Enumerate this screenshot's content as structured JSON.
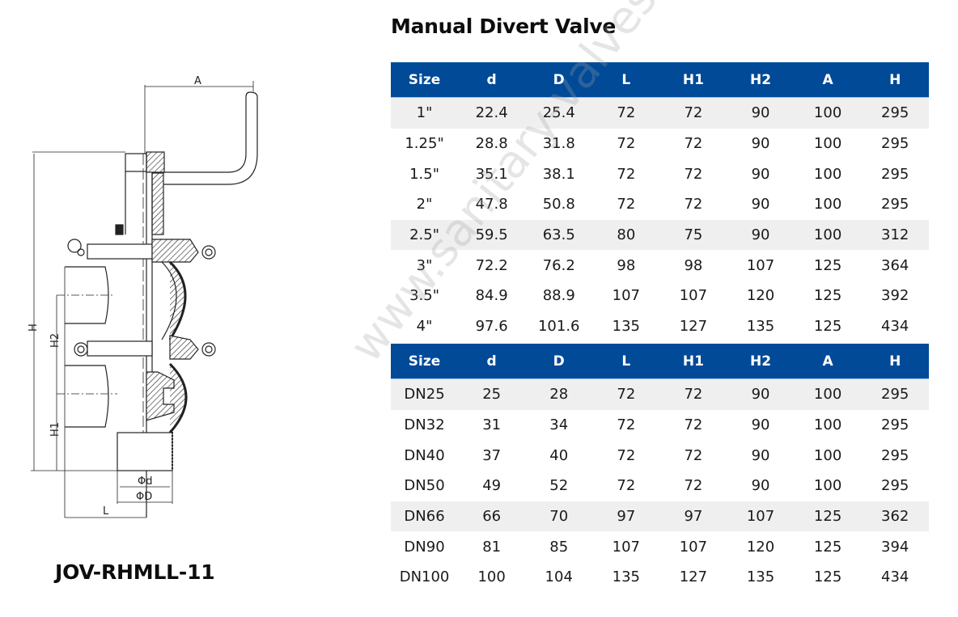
{
  "title": "Manual Divert Valve",
  "model": "JOV-RHMLL-11",
  "watermark": "www.sanitary-valves.com",
  "colors": {
    "header_bg": "#004a98",
    "row_shade": "#efefef",
    "header_text": "#ffffff"
  },
  "diagram": {
    "labels": {
      "A": "A",
      "H": "H",
      "H1": "H1",
      "H2": "H2",
      "d": "Φd",
      "D": "ΦD",
      "L": "L"
    }
  },
  "table_inch": {
    "headers": [
      "Size",
      "d",
      "D",
      "L",
      "H1",
      "H2",
      "A",
      "H"
    ],
    "rows": [
      {
        "shaded": true,
        "cells": [
          "1\"",
          "22.4",
          "25.4",
          "72",
          "72",
          "90",
          "100",
          "295"
        ]
      },
      {
        "shaded": false,
        "cells": [
          "1.25\"",
          "28.8",
          "31.8",
          "72",
          "72",
          "90",
          "100",
          "295"
        ]
      },
      {
        "shaded": false,
        "cells": [
          "1.5\"",
          "35.1",
          "38.1",
          "72",
          "72",
          "90",
          "100",
          "295"
        ]
      },
      {
        "shaded": false,
        "cells": [
          "2\"",
          "47.8",
          "50.8",
          "72",
          "72",
          "90",
          "100",
          "295"
        ]
      },
      {
        "shaded": true,
        "cells": [
          "2.5\"",
          "59.5",
          "63.5",
          "80",
          "75",
          "90",
          "100",
          "312"
        ]
      },
      {
        "shaded": false,
        "cells": [
          "3\"",
          "72.2",
          "76.2",
          "98",
          "98",
          "107",
          "125",
          "364"
        ]
      },
      {
        "shaded": false,
        "cells": [
          "3.5\"",
          "84.9",
          "88.9",
          "107",
          "107",
          "120",
          "125",
          "392"
        ]
      },
      {
        "shaded": false,
        "cells": [
          "4\"",
          "97.6",
          "101.6",
          "135",
          "127",
          "135",
          "125",
          "434"
        ]
      }
    ]
  },
  "table_dn": {
    "headers": [
      "Size",
      "d",
      "D",
      "L",
      "H1",
      "H2",
      "A",
      "H"
    ],
    "rows": [
      {
        "shaded": true,
        "cells": [
          "DN25",
          "25",
          "28",
          "72",
          "72",
          "90",
          "100",
          "295"
        ]
      },
      {
        "shaded": false,
        "cells": [
          "DN32",
          "31",
          "34",
          "72",
          "72",
          "90",
          "100",
          "295"
        ]
      },
      {
        "shaded": false,
        "cells": [
          "DN40",
          "37",
          "40",
          "72",
          "72",
          "90",
          "100",
          "295"
        ]
      },
      {
        "shaded": false,
        "cells": [
          "DN50",
          "49",
          "52",
          "72",
          "72",
          "90",
          "100",
          "295"
        ]
      },
      {
        "shaded": true,
        "cells": [
          "DN66",
          "66",
          "70",
          "97",
          "97",
          "107",
          "125",
          "362"
        ]
      },
      {
        "shaded": false,
        "cells": [
          "DN90",
          "81",
          "85",
          "107",
          "107",
          "120",
          "125",
          "394"
        ]
      },
      {
        "shaded": false,
        "cells": [
          "DN100",
          "100",
          "104",
          "135",
          "127",
          "135",
          "125",
          "434"
        ]
      }
    ]
  }
}
